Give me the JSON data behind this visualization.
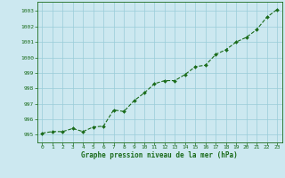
{
  "x": [
    0,
    1,
    2,
    3,
    4,
    5,
    6,
    7,
    8,
    9,
    10,
    11,
    12,
    13,
    14,
    15,
    16,
    17,
    18,
    19,
    20,
    21,
    22,
    23
  ],
  "y": [
    995.1,
    995.2,
    995.2,
    995.4,
    995.2,
    995.5,
    995.55,
    996.6,
    996.5,
    997.2,
    997.7,
    998.3,
    998.5,
    998.5,
    998.9,
    999.4,
    999.5,
    1000.2,
    1000.5,
    1001.0,
    1001.3,
    1001.8,
    1002.6,
    1003.1
  ],
  "line_color": "#1a6b1a",
  "marker_color": "#1a6b1a",
  "bg_color": "#cce8f0",
  "grid_color": "#99ccd9",
  "xlabel": "Graphe pression niveau de la mer (hPa)",
  "xlabel_color": "#1a6b1a",
  "tick_color": "#1a6b1a",
  "ylim": [
    994.5,
    1003.6
  ],
  "xlim": [
    -0.5,
    23.5
  ],
  "yticks": [
    995,
    996,
    997,
    998,
    999,
    1000,
    1001,
    1002,
    1003
  ],
  "xticks": [
    0,
    1,
    2,
    3,
    4,
    5,
    6,
    7,
    8,
    9,
    10,
    11,
    12,
    13,
    14,
    15,
    16,
    17,
    18,
    19,
    20,
    21,
    22,
    23
  ],
  "figsize": [
    3.2,
    2.0
  ],
  "dpi": 100
}
